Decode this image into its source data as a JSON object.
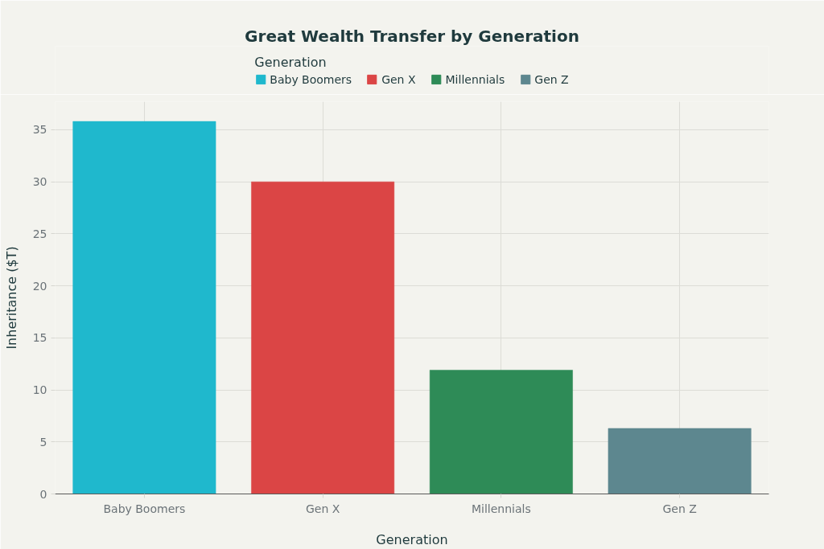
{
  "chart_data": {
    "type": "bar",
    "title": "Great Wealth Transfer by Generation",
    "xlabel": "Generation",
    "ylabel": "Inheritance ($T)",
    "legend_title": "Generation",
    "categories": [
      "Baby Boomers",
      "Gen X",
      "Millennials",
      "Gen Z"
    ],
    "series": [
      {
        "name": "Baby Boomers",
        "color": "#1fb8cd",
        "values": [
          35.8,
          null,
          null,
          null
        ]
      },
      {
        "name": "Gen X",
        "color": "#db4545",
        "values": [
          null,
          30,
          null,
          null
        ]
      },
      {
        "name": "Millennials",
        "color": "#2e8b57",
        "values": [
          null,
          null,
          11.9,
          null
        ]
      },
      {
        "name": "Gen Z",
        "color": "#5d878f",
        "values": [
          null,
          null,
          null,
          6.3
        ]
      }
    ],
    "ylim": [
      0,
      37.7
    ],
    "yticks": [
      0,
      5,
      10,
      15,
      20,
      25,
      30,
      35
    ],
    "grid": true,
    "legend": "top"
  }
}
